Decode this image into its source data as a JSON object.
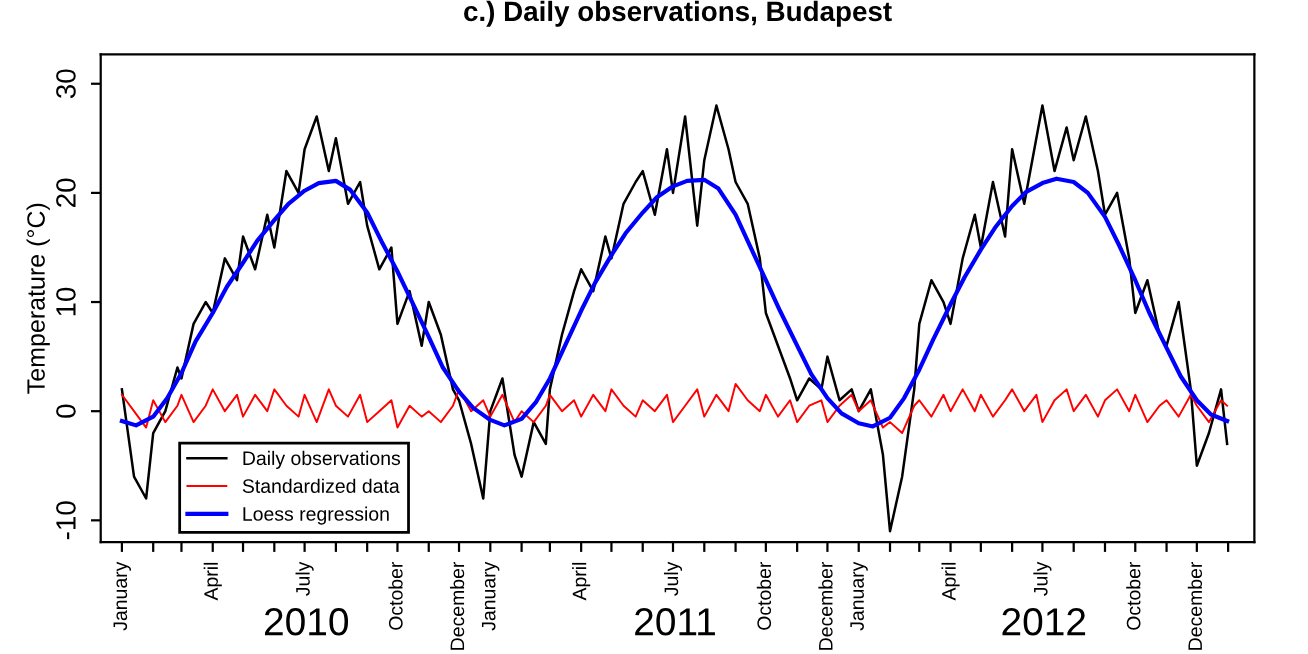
{
  "chart_data": {
    "type": "line",
    "title": "c.) Daily observations, Budapest",
    "ylabel": "Temperature (°C)",
    "xlim": [
      "2009-12-11",
      "2013-01-27"
    ],
    "ylim": [
      -12,
      32.7
    ],
    "yticks": [
      -10,
      0,
      10,
      20,
      30
    ],
    "xticks": [
      {
        "value": "2010-01-01",
        "label": "January"
      },
      {
        "value": "2010-02-01",
        "label": null
      },
      {
        "value": "2010-03-01",
        "label": null
      },
      {
        "value": "2010-04-01",
        "label": "April"
      },
      {
        "value": "2010-05-01",
        "label": null
      },
      {
        "value": "2010-06-01",
        "label": null
      },
      {
        "value": "2010-07-01",
        "label": "July"
      },
      {
        "value": "2010-08-01",
        "label": null
      },
      {
        "value": "2010-09-01",
        "label": null
      },
      {
        "value": "2010-10-01",
        "label": "October"
      },
      {
        "value": "2010-11-01",
        "label": null
      },
      {
        "value": "2010-12-01",
        "label": "December"
      },
      {
        "value": "2011-01-01",
        "label": "January"
      },
      {
        "value": "2011-02-01",
        "label": null
      },
      {
        "value": "2011-03-01",
        "label": null
      },
      {
        "value": "2011-04-01",
        "label": "April"
      },
      {
        "value": "2011-05-01",
        "label": null
      },
      {
        "value": "2011-06-01",
        "label": null
      },
      {
        "value": "2011-07-01",
        "label": "July"
      },
      {
        "value": "2011-08-01",
        "label": null
      },
      {
        "value": "2011-09-01",
        "label": null
      },
      {
        "value": "2011-10-01",
        "label": "October"
      },
      {
        "value": "2011-11-01",
        "label": null
      },
      {
        "value": "2011-12-01",
        "label": "December"
      },
      {
        "value": "2012-01-01",
        "label": "January"
      },
      {
        "value": "2012-02-01",
        "label": null
      },
      {
        "value": "2012-03-01",
        "label": null
      },
      {
        "value": "2012-04-01",
        "label": "April"
      },
      {
        "value": "2012-05-01",
        "label": null
      },
      {
        "value": "2012-06-01",
        "label": null
      },
      {
        "value": "2012-07-01",
        "label": "July"
      },
      {
        "value": "2012-08-01",
        "label": null
      },
      {
        "value": "2012-09-01",
        "label": null
      },
      {
        "value": "2012-10-01",
        "label": "October"
      },
      {
        "value": "2012-11-01",
        "label": null
      },
      {
        "value": "2012-12-01",
        "label": "December"
      },
      {
        "value": "2013-01-01",
        "label": null
      }
    ],
    "annotations": [
      "2010",
      "2011",
      "2012"
    ],
    "grid": false,
    "legend": "bottom left",
    "marker": "none",
    "line_style": "solid",
    "series": [
      {
        "name": "Daily observations",
        "color": "#000000",
        "x": [
          "2010-01-01",
          "2010-01-13",
          "2010-01-25",
          "2010-02-01",
          "2010-02-13",
          "2010-02-25",
          "2010-03-01",
          "2010-03-13",
          "2010-03-25",
          "2010-04-01",
          "2010-04-13",
          "2010-04-25",
          "2010-05-01",
          "2010-05-13",
          "2010-05-25",
          "2010-06-01",
          "2010-06-13",
          "2010-06-25",
          "2010-07-01",
          "2010-07-13",
          "2010-07-25",
          "2010-08-01",
          "2010-08-13",
          "2010-08-25",
          "2010-09-01",
          "2010-09-13",
          "2010-09-25",
          "2010-10-01",
          "2010-10-13",
          "2010-10-25",
          "2010-11-01",
          "2010-11-13",
          "2010-11-25",
          "2010-12-01",
          "2010-12-13",
          "2010-12-25",
          "2011-01-01",
          "2011-01-13",
          "2011-01-25",
          "2011-02-01",
          "2011-02-13",
          "2011-02-25",
          "2011-03-01",
          "2011-03-13",
          "2011-03-25",
          "2011-04-01",
          "2011-04-13",
          "2011-04-25",
          "2011-05-01",
          "2011-05-13",
          "2011-05-25",
          "2011-06-01",
          "2011-06-13",
          "2011-06-25",
          "2011-07-01",
          "2011-07-13",
          "2011-07-25",
          "2011-08-01",
          "2011-08-13",
          "2011-08-25",
          "2011-09-01",
          "2011-09-13",
          "2011-09-25",
          "2011-10-01",
          "2011-10-13",
          "2011-10-25",
          "2011-11-01",
          "2011-11-13",
          "2011-11-25",
          "2011-12-01",
          "2011-12-13",
          "2011-12-25",
          "2012-01-01",
          "2012-01-13",
          "2012-01-25",
          "2012-02-01",
          "2012-02-13",
          "2012-02-25",
          "2012-03-01",
          "2012-03-13",
          "2012-03-25",
          "2012-04-01",
          "2012-04-13",
          "2012-04-25",
          "2012-05-01",
          "2012-05-13",
          "2012-05-25",
          "2012-06-01",
          "2012-06-13",
          "2012-06-25",
          "2012-07-01",
          "2012-07-13",
          "2012-07-25",
          "2012-08-01",
          "2012-08-13",
          "2012-08-25",
          "2012-09-01",
          "2012-09-13",
          "2012-09-25",
          "2012-10-01",
          "2012-10-13",
          "2012-10-25",
          "2012-11-01",
          "2012-11-13",
          "2012-11-25",
          "2012-12-01",
          "2012-12-13",
          "2012-12-25",
          "2012-12-31"
        ],
        "values": [
          2,
          -6,
          -8,
          -2,
          0,
          4,
          3,
          8,
          10,
          9,
          14,
          12,
          16,
          13,
          18,
          15,
          22,
          20,
          24,
          27,
          22,
          25,
          19,
          21,
          17,
          13,
          15,
          8,
          11,
          6,
          10,
          7,
          2,
          1,
          -3,
          -8,
          0,
          3,
          -4,
          -6,
          -1,
          -3,
          2,
          7,
          11,
          13,
          11,
          16,
          14,
          19,
          21,
          22,
          18,
          24,
          20,
          27,
          17,
          23,
          28,
          24,
          21,
          19,
          14,
          9,
          6,
          3,
          1,
          3,
          2,
          5,
          1,
          2,
          0,
          2,
          -4,
          -11,
          -6,
          2,
          8,
          12,
          10,
          8,
          14,
          18,
          15,
          21,
          16,
          24,
          19,
          25,
          28,
          22,
          26,
          23,
          27,
          22,
          18,
          20,
          14,
          9,
          12,
          7,
          6,
          10,
          2,
          -5,
          -2,
          2,
          -3
        ]
      },
      {
        "name": "Standardized data",
        "color": "#ff0000",
        "x": [
          "2010-01-01",
          "2010-01-13",
          "2010-01-25",
          "2010-02-01",
          "2010-02-13",
          "2010-02-25",
          "2010-03-01",
          "2010-03-13",
          "2010-03-25",
          "2010-04-01",
          "2010-04-13",
          "2010-04-25",
          "2010-05-01",
          "2010-05-13",
          "2010-05-25",
          "2010-06-01",
          "2010-06-13",
          "2010-06-25",
          "2010-07-01",
          "2010-07-13",
          "2010-07-25",
          "2010-08-01",
          "2010-08-13",
          "2010-08-25",
          "2010-09-01",
          "2010-09-13",
          "2010-09-25",
          "2010-10-01",
          "2010-10-13",
          "2010-10-25",
          "2010-11-01",
          "2010-11-13",
          "2010-11-25",
          "2010-12-01",
          "2010-12-13",
          "2010-12-25",
          "2011-01-01",
          "2011-01-13",
          "2011-01-25",
          "2011-02-01",
          "2011-02-13",
          "2011-02-25",
          "2011-03-01",
          "2011-03-13",
          "2011-03-25",
          "2011-04-01",
          "2011-04-13",
          "2011-04-25",
          "2011-05-01",
          "2011-05-13",
          "2011-05-25",
          "2011-06-01",
          "2011-06-13",
          "2011-06-25",
          "2011-07-01",
          "2011-07-13",
          "2011-07-25",
          "2011-08-01",
          "2011-08-13",
          "2011-08-25",
          "2011-09-01",
          "2011-09-13",
          "2011-09-25",
          "2011-10-01",
          "2011-10-13",
          "2011-10-25",
          "2011-11-01",
          "2011-11-13",
          "2011-11-25",
          "2011-12-01",
          "2011-12-13",
          "2011-12-25",
          "2012-01-01",
          "2012-01-13",
          "2012-01-25",
          "2012-02-01",
          "2012-02-13",
          "2012-02-25",
          "2012-03-01",
          "2012-03-13",
          "2012-03-25",
          "2012-04-01",
          "2012-04-13",
          "2012-04-25",
          "2012-05-01",
          "2012-05-13",
          "2012-05-25",
          "2012-06-01",
          "2012-06-13",
          "2012-06-25",
          "2012-07-01",
          "2012-07-13",
          "2012-07-25",
          "2012-08-01",
          "2012-08-13",
          "2012-08-25",
          "2012-09-01",
          "2012-09-13",
          "2012-09-25",
          "2012-10-01",
          "2012-10-13",
          "2012-10-25",
          "2012-11-01",
          "2012-11-13",
          "2012-11-25",
          "2012-12-01",
          "2012-12-13",
          "2012-12-25",
          "2012-12-31"
        ],
        "values": [
          1.5,
          0,
          -1.5,
          1,
          -1,
          0.5,
          1.5,
          -1,
          0.5,
          2,
          0,
          1.5,
          -0.5,
          1.5,
          0,
          2,
          0.5,
          -0.5,
          1.5,
          -1,
          2,
          0.5,
          -0.5,
          1.5,
          -1,
          0,
          1,
          -1.5,
          0.5,
          -0.5,
          0,
          -1,
          0.5,
          2,
          0,
          1,
          -0.5,
          1.5,
          -1,
          0,
          -1,
          0.5,
          1.5,
          0,
          1,
          -0.5,
          1.5,
          0,
          2,
          0.5,
          -0.5,
          1,
          0,
          1.5,
          -1,
          0.5,
          2,
          -0.5,
          1.5,
          0,
          2.5,
          1,
          0,
          1.5,
          -0.5,
          1,
          -1,
          0.5,
          1,
          -1,
          0.5,
          1.5,
          0,
          1,
          -1.5,
          -1,
          -2,
          0.5,
          1,
          -0.5,
          1.5,
          0,
          2,
          0,
          1.5,
          -0.5,
          1,
          2,
          0,
          1.5,
          -1,
          1,
          2,
          0,
          1.5,
          -0.5,
          1,
          2,
          0,
          1.5,
          -1,
          0.5,
          1,
          -0.5,
          1.5,
          0.5,
          -1,
          1,
          0.5
        ]
      },
      {
        "name": "Loess regression",
        "color": "#0000ff",
        "x": [
          "2010-01-01",
          "2010-01-15",
          "2010-02-01",
          "2010-02-15",
          "2010-03-01",
          "2010-03-15",
          "2010-04-01",
          "2010-04-15",
          "2010-05-01",
          "2010-05-15",
          "2010-06-01",
          "2010-06-15",
          "2010-07-01",
          "2010-07-15",
          "2010-08-01",
          "2010-08-15",
          "2010-09-01",
          "2010-09-15",
          "2010-10-01",
          "2010-10-15",
          "2010-11-01",
          "2010-11-15",
          "2010-12-01",
          "2010-12-15",
          "2011-01-01",
          "2011-01-15",
          "2011-02-01",
          "2011-02-15",
          "2011-03-01",
          "2011-03-15",
          "2011-04-01",
          "2011-04-15",
          "2011-05-01",
          "2011-05-15",
          "2011-06-01",
          "2011-06-15",
          "2011-07-01",
          "2011-07-15",
          "2011-08-01",
          "2011-08-15",
          "2011-09-01",
          "2011-09-15",
          "2011-10-01",
          "2011-10-15",
          "2011-11-01",
          "2011-11-15",
          "2011-12-01",
          "2011-12-15",
          "2012-01-01",
          "2012-01-15",
          "2012-02-01",
          "2012-02-15",
          "2012-03-01",
          "2012-03-15",
          "2012-04-01",
          "2012-04-15",
          "2012-05-01",
          "2012-05-15",
          "2012-06-01",
          "2012-06-15",
          "2012-07-01",
          "2012-07-15",
          "2012-08-01",
          "2012-08-15",
          "2012-09-01",
          "2012-09-15",
          "2012-10-01",
          "2012-10-15",
          "2012-11-01",
          "2012-11-15",
          "2012-12-01",
          "2012-12-15",
          "2012-12-31"
        ],
        "values": [
          -0.9,
          -1.3,
          -0.5,
          1.2,
          3.5,
          6.4,
          9,
          11.4,
          13.6,
          15.6,
          17.5,
          19,
          20.2,
          20.9,
          21.1,
          20.3,
          18.2,
          15.6,
          12.8,
          10.1,
          6.8,
          4,
          1.8,
          0.3,
          -0.8,
          -1.3,
          -0.7,
          0.8,
          3,
          5.8,
          9.2,
          11.8,
          14.3,
          16.3,
          18.2,
          19.6,
          20.6,
          21.1,
          21.2,
          20.4,
          18,
          15.2,
          12,
          9.2,
          6,
          3.4,
          1.2,
          -0.2,
          -1.1,
          -1.4,
          -0.6,
          1.2,
          3.8,
          6.6,
          9.8,
          12.3,
          14.8,
          16.8,
          18.8,
          20.1,
          20.9,
          21.3,
          21,
          20,
          17.8,
          15.2,
          12,
          9,
          5.8,
          3.2,
          1,
          -0.3,
          -0.9
        ]
      }
    ]
  }
}
